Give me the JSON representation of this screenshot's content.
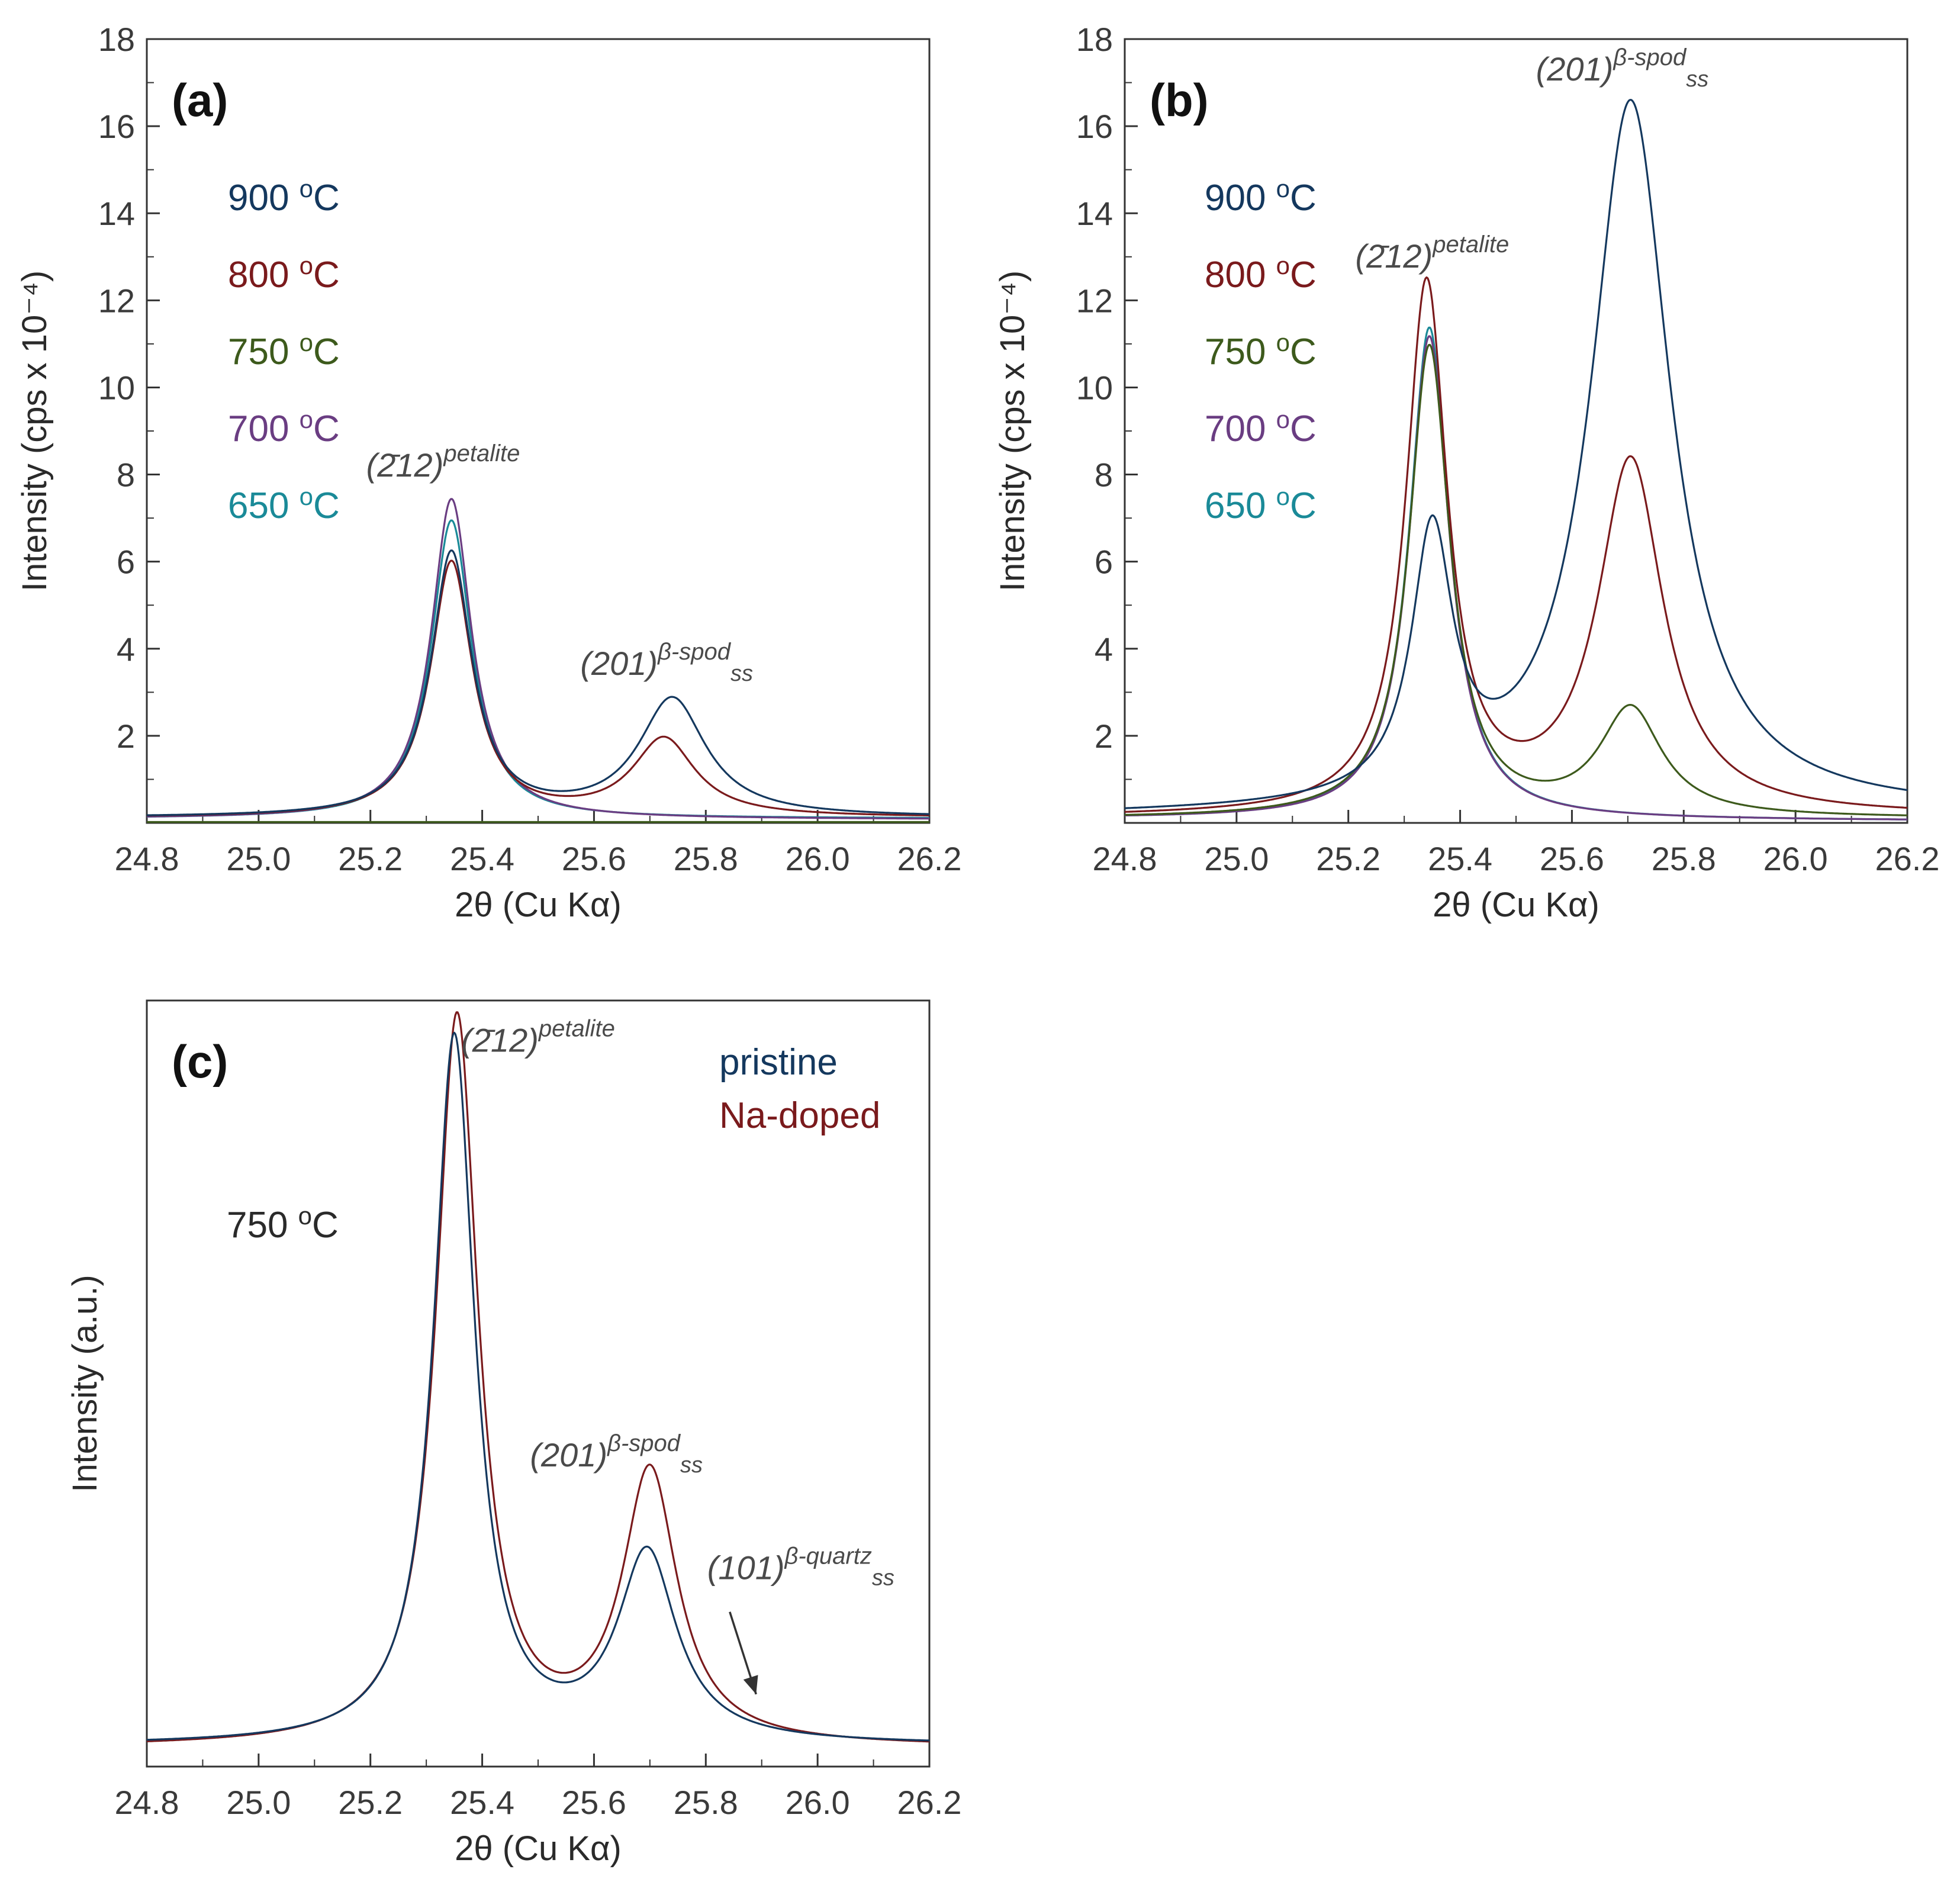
{
  "chart_data": [
    {
      "id": "a",
      "type": "line",
      "panel_label": "(a)",
      "xlabel": "2θ (Cu Kα)",
      "ylabel": "Intensity (cps x 10⁻⁴)",
      "xlim": [
        24.8,
        26.2
      ],
      "ylim": [
        0,
        18
      ],
      "xticks": [
        "24.8",
        "25.0",
        "25.2",
        "25.4",
        "25.6",
        "25.8",
        "26.0",
        "26.2"
      ],
      "yticks": [
        "2",
        "4",
        "6",
        "8",
        "10",
        "12",
        "14",
        "16",
        "18"
      ],
      "legend": [
        {
          "label": "900 ",
          "sup": "o",
          "unit": "C",
          "color": "#14385e"
        },
        {
          "label": "800 ",
          "sup": "o",
          "unit": "C",
          "color": "#7a1a1c"
        },
        {
          "label": "750 ",
          "sup": "o",
          "unit": "C",
          "color": "#3d5a1c"
        },
        {
          "label": "700 ",
          "sup": "o",
          "unit": "C",
          "color": "#6a3d82"
        },
        {
          "label": "650 ",
          "sup": "o",
          "unit": "C",
          "color": "#1a8a98"
        }
      ],
      "annotations": [
        {
          "kind": "petalite",
          "text": "(2̄12)",
          "sup": "petalite",
          "x": 25.33,
          "y": 7.95
        },
        {
          "kind": "spod",
          "text": "(201)",
          "sup": "β-spod",
          "sub": "ss",
          "x": 25.73,
          "y": 3.4
        }
      ],
      "series": [
        {
          "name": "650 °C",
          "color": "#1a8a98",
          "baseline": 0.1,
          "peaks": [
            {
              "center": 25.345,
              "amp": 6.85,
              "width": 0.055
            }
          ],
          "tail_end": 0.1
        },
        {
          "name": "700 °C",
          "color": "#6a3d82",
          "baseline": 0.1,
          "peaks": [
            {
              "center": 25.345,
              "amp": 7.35,
              "width": 0.055
            }
          ],
          "tail_end": 0.08
        },
        {
          "name": "750 °C",
          "color": "#3d5a1c",
          "baseline": 0.02,
          "peaks": [],
          "tail_end": 0.02
        },
        {
          "name": "800 °C",
          "color": "#7a1a1c",
          "baseline": 0.12,
          "peaks": [
            {
              "center": 25.345,
              "amp": 5.85,
              "width": 0.057
            },
            {
              "center": 25.725,
              "amp": 1.78,
              "width": 0.085
            }
          ],
          "tail_end": 0.12
        },
        {
          "name": "900 °C",
          "color": "#14385e",
          "baseline": 0.12,
          "peaks": [
            {
              "center": 25.345,
              "amp": 6.05,
              "width": 0.056
            },
            {
              "center": 25.74,
              "amp": 2.7,
              "width": 0.092
            }
          ],
          "tail_end": 0.12
        }
      ]
    },
    {
      "id": "b",
      "type": "line",
      "panel_label": "(b)",
      "xlabel": "2θ (Cu Kα)",
      "ylabel": "Intensity (cps x 10⁻⁴)",
      "xlim": [
        24.8,
        26.2
      ],
      "ylim": [
        0,
        18
      ],
      "xticks": [
        "24.8",
        "25.0",
        "25.2",
        "25.4",
        "25.6",
        "25.8",
        "26.0",
        "26.2"
      ],
      "yticks": [
        "2",
        "4",
        "6",
        "8",
        "10",
        "12",
        "14",
        "16",
        "18"
      ],
      "legend": [
        {
          "label": "900 ",
          "sup": "o",
          "unit": "C",
          "color": "#14385e"
        },
        {
          "label": "800 ",
          "sup": "o",
          "unit": "C",
          "color": "#7a1a1c"
        },
        {
          "label": "750 ",
          "sup": "o",
          "unit": "C",
          "color": "#3d5a1c"
        },
        {
          "label": "700 ",
          "sup": "o",
          "unit": "C",
          "color": "#6a3d82"
        },
        {
          "label": "650 ",
          "sup": "o",
          "unit": "C",
          "color": "#1a8a98"
        }
      ],
      "annotations": [
        {
          "kind": "petalite",
          "text": "(2̄12)",
          "sup": "petalite",
          "x": 25.35,
          "y": 12.75
        },
        {
          "kind": "spod",
          "text": "(201)",
          "sup": "β-spod",
          "sub": "ss",
          "x": 25.69,
          "y": 17.05
        }
      ],
      "series": [
        {
          "name": "650 °C",
          "color": "#1a8a98",
          "baseline": 0.1,
          "peaks": [
            {
              "center": 25.345,
              "amp": 11.3,
              "width": 0.055
            }
          ],
          "tail_end": 0.05
        },
        {
          "name": "700 °C",
          "color": "#6a3d82",
          "baseline": 0.1,
          "peaks": [
            {
              "center": 25.345,
              "amp": 11.1,
              "width": 0.055
            }
          ],
          "tail_end": 0.05
        },
        {
          "name": "750 °C",
          "color": "#3d5a1c",
          "baseline": 0.1,
          "peaks": [
            {
              "center": 25.345,
              "amp": 10.8,
              "width": 0.056
            },
            {
              "center": 25.705,
              "amp": 2.45,
              "width": 0.085
            }
          ],
          "tail_end": 0.1
        },
        {
          "name": "800 °C",
          "color": "#7a1a1c",
          "baseline": 0.12,
          "peaks": [
            {
              "center": 25.34,
              "amp": 12.1,
              "width": 0.057
            },
            {
              "center": 25.705,
              "amp": 8.1,
              "width": 0.09
            }
          ],
          "tail_end": 0.15
        },
        {
          "name": "900 °C",
          "color": "#14385e",
          "baseline": 0.15,
          "peaks": [
            {
              "center": 25.35,
              "amp": 5.95,
              "width": 0.056
            },
            {
              "center": 25.705,
              "amp": 16.3,
              "width": 0.11
            }
          ],
          "tail_end": 0.25
        }
      ]
    },
    {
      "id": "c",
      "type": "line",
      "panel_label": "(c)",
      "xlabel": "2θ (Cu Kα)",
      "ylabel": "Intensity (a.u.)",
      "xlim": [
        24.8,
        26.2
      ],
      "ylim": [
        0,
        18
      ],
      "xticks": [
        "24.8",
        "25.0",
        "25.2",
        "25.4",
        "25.6",
        "25.8",
        "26.0",
        "26.2"
      ],
      "yticks": [],
      "legend": [
        {
          "label": "pristine",
          "sup": "",
          "unit": "",
          "color": "#14385e"
        },
        {
          "label": "Na-doped",
          "sup": "",
          "unit": "",
          "color": "#7a1a1c"
        }
      ],
      "temperature": {
        "label": "750 ",
        "sup": "o",
        "unit": "C"
      },
      "annotations": [
        {
          "kind": "petalite",
          "text": "(2̄12)",
          "sup": "petalite",
          "x": 25.5,
          "y": 16.8
        },
        {
          "kind": "spod",
          "text": "(201)",
          "sup": "β-spod",
          "sub": "ss",
          "x": 25.64,
          "y": 7.05
        },
        {
          "kind": "quartz",
          "text": "(101)",
          "sup": "β-quartz",
          "sub": "ss",
          "x": 25.97,
          "y": 4.4,
          "arrow_to": [
            25.89,
            1.7
          ]
        }
      ],
      "series": [
        {
          "name": "Na-doped",
          "color": "#7a1a1c",
          "baseline": 0.45,
          "peaks": [
            {
              "center": 25.355,
              "amp": 17.1,
              "width": 0.058
            },
            {
              "center": 25.7,
              "amp": 6.35,
              "width": 0.075
            }
          ],
          "tail_end": 0.45
        },
        {
          "name": "pristine",
          "color": "#14385e",
          "baseline": 0.5,
          "peaks": [
            {
              "center": 25.35,
              "amp": 16.6,
              "width": 0.056
            },
            {
              "center": 25.695,
              "amp": 4.4,
              "width": 0.08
            }
          ],
          "tail_end": 0.5
        }
      ]
    }
  ]
}
